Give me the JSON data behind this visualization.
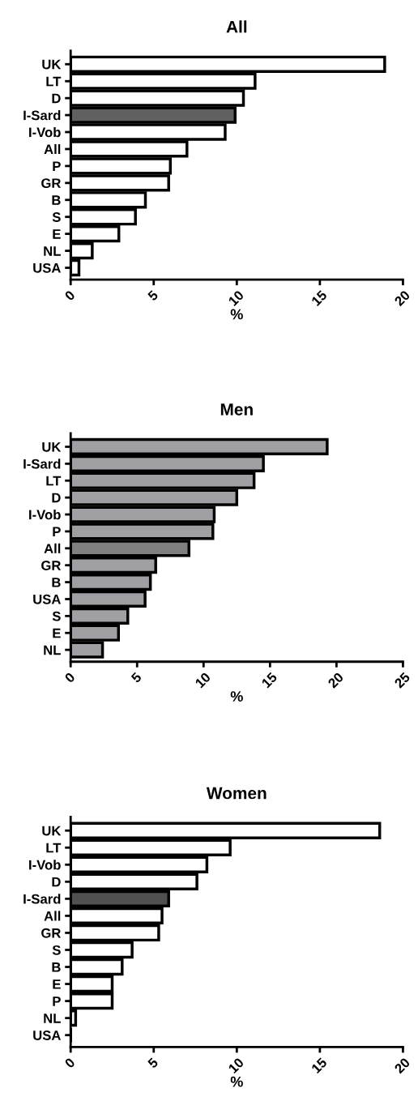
{
  "chart_data": [
    {
      "type": "bar",
      "orientation": "horizontal",
      "title": "All",
      "xlabel": "%",
      "categories": [
        "UK",
        "LT",
        "D",
        "I-Sard",
        "I-Vob",
        "All",
        "P",
        "GR",
        "B",
        "S",
        "E",
        "NL",
        "USA"
      ],
      "values": [
        18.9,
        11.1,
        10.4,
        9.9,
        9.3,
        7.0,
        6.0,
        5.9,
        4.5,
        3.9,
        2.9,
        1.3,
        0.5
      ],
      "colors": [
        "#ffffff",
        "#ffffff",
        "#ffffff",
        "#606060",
        "#ffffff",
        "#ffffff",
        "#ffffff",
        "#ffffff",
        "#ffffff",
        "#ffffff",
        "#ffffff",
        "#ffffff",
        "#ffffff"
      ],
      "xlim": [
        0,
        20
      ],
      "xticks": [
        0,
        5,
        10,
        15,
        20
      ]
    },
    {
      "type": "bar",
      "orientation": "horizontal",
      "title": "Men",
      "xlabel": "%",
      "categories": [
        "UK",
        "I-Sard",
        "LT",
        "D",
        "I-Vob",
        "P",
        "All",
        "GR",
        "B",
        "USA",
        "S",
        "E",
        "NL"
      ],
      "values": [
        19.3,
        14.5,
        13.8,
        12.5,
        10.8,
        10.7,
        8.9,
        6.4,
        6.0,
        5.6,
        4.3,
        3.6,
        2.4
      ],
      "colors": [
        "#a0a0a4",
        "#a0a0a4",
        "#a0a0a4",
        "#a0a0a4",
        "#a0a0a4",
        "#a0a0a4",
        "#808080",
        "#a0a0a4",
        "#a0a0a4",
        "#a0a0a4",
        "#a0a0a4",
        "#a0a0a4",
        "#a0a0a4"
      ],
      "xlim": [
        0,
        25
      ],
      "xticks": [
        0,
        5,
        10,
        15,
        20,
        25
      ]
    },
    {
      "type": "bar",
      "orientation": "horizontal",
      "title": "Women",
      "xlabel": "%",
      "categories": [
        "UK",
        "LT",
        "I-Vob",
        "D",
        "I-Sard",
        "All",
        "GR",
        "S",
        "B",
        "E",
        "P",
        "NL",
        "USA"
      ],
      "values": [
        18.6,
        9.6,
        8.2,
        7.6,
        5.9,
        5.5,
        5.3,
        3.7,
        3.1,
        2.5,
        2.5,
        0.3,
        0.0
      ],
      "colors": [
        "#ffffff",
        "#ffffff",
        "#ffffff",
        "#ffffff",
        "#505050",
        "#ffffff",
        "#ffffff",
        "#ffffff",
        "#ffffff",
        "#ffffff",
        "#ffffff",
        "#ffffff",
        "#ffffff"
      ],
      "xlim": [
        0,
        20
      ],
      "xticks": [
        0,
        5,
        10,
        15,
        20
      ]
    }
  ]
}
